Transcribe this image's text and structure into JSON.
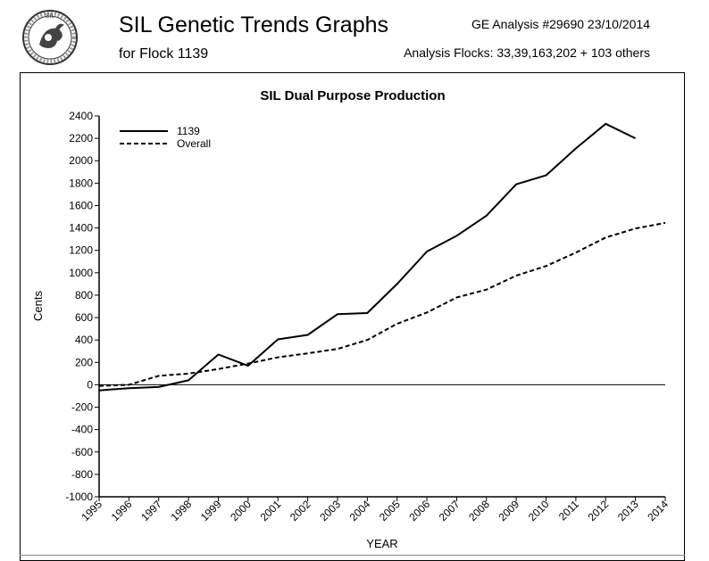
{
  "header": {
    "title": "SIL Genetic Trends Graphs",
    "subtitle": "for Flock 1139",
    "analysis": "GE Analysis #29690 23/10/2014",
    "flocks": "Analysis Flocks: 33,39,163,202 + 103 others"
  },
  "logo": {
    "icon": "sil-logo-icon",
    "text": "SIL"
  },
  "chart_data": {
    "type": "line",
    "title": "SIL Dual Purpose Production",
    "xlabel": "YEAR",
    "ylabel": "Cents",
    "xlim": [
      1995,
      2014
    ],
    "ylim": [
      -1000,
      2400
    ],
    "yticks": [
      -1000,
      -800,
      -600,
      -400,
      -200,
      0,
      200,
      400,
      600,
      800,
      1000,
      1200,
      1400,
      1600,
      1800,
      2000,
      2200,
      2400
    ],
    "xtick_labels": [
      "1995",
      "1996",
      "1997",
      "1998",
      "1999",
      "2000",
      "2001",
      "2002",
      "2003",
      "2004",
      "2005",
      "2006",
      "2007",
      "2008",
      "2009",
      "2010",
      "2011",
      "2012",
      "2013",
      "2014"
    ],
    "zero_line": true,
    "grid": false,
    "legend_position": "top-left",
    "series": [
      {
        "name": "1139",
        "style": "solid",
        "color": "#000000",
        "x": [
          1995,
          1996,
          1997,
          1998,
          1999,
          2000,
          2001,
          2002,
          2003,
          2004,
          2005,
          2006,
          2007,
          2008,
          2009,
          2010,
          2011,
          2012,
          2013
        ],
        "values": [
          -50,
          -30,
          -20,
          40,
          270,
          170,
          405,
          445,
          630,
          640,
          900,
          1190,
          1330,
          1510,
          1790,
          1870,
          2110,
          2330,
          2200
        ]
      },
      {
        "name": "Overall",
        "style": "dashed",
        "color": "#000000",
        "x": [
          1995,
          1996,
          1997,
          1998,
          1999,
          2000,
          2001,
          2002,
          2003,
          2004,
          2005,
          2006,
          2007,
          2008,
          2009,
          2010,
          2011,
          2012,
          2013,
          2014
        ],
        "values": [
          -10,
          0,
          80,
          100,
          140,
          190,
          245,
          280,
          320,
          400,
          545,
          645,
          780,
          850,
          975,
          1060,
          1180,
          1315,
          1395,
          1445
        ]
      }
    ]
  }
}
